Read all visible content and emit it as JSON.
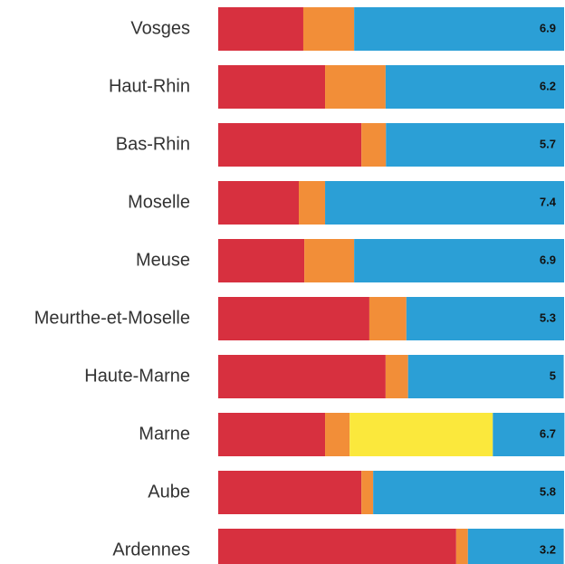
{
  "chart_data": {
    "type": "bar",
    "orientation": "horizontal",
    "stacked": true,
    "categories": [
      "Vosges",
      "Haut-Rhin",
      "Bas-Rhin",
      "Moselle",
      "Meuse",
      "Meurthe-et-Moselle",
      "Haute-Marne",
      "Marne",
      "Aube",
      "Ardennes"
    ],
    "series": [
      {
        "color": "#d7303f",
        "values": [
          24.6,
          30.9,
          41.4,
          23.3,
          24.9,
          43.7,
          48.4,
          30.9,
          41.4,
          68.8
        ]
      },
      {
        "color": "#f28e38",
        "values": [
          14.7,
          17.5,
          7.1,
          7.6,
          14.4,
          10.7,
          6.5,
          7.1,
          3.4,
          3.4
        ]
      },
      {
        "color": "#fbe83c",
        "values": [
          0,
          0,
          0,
          0,
          0,
          0,
          0,
          41.4,
          0,
          0
        ]
      },
      {
        "color": "#2b9fd6",
        "values": [
          60.7,
          51.6,
          51.5,
          69.1,
          60.7,
          45.6,
          45.0,
          20.7,
          55.2,
          27.7
        ]
      }
    ],
    "scores": [
      6.9,
      6.2,
      5.7,
      7.4,
      6.9,
      5.3,
      5,
      6.7,
      5.8,
      3.2
    ],
    "xlim": [
      0,
      100
    ]
  }
}
